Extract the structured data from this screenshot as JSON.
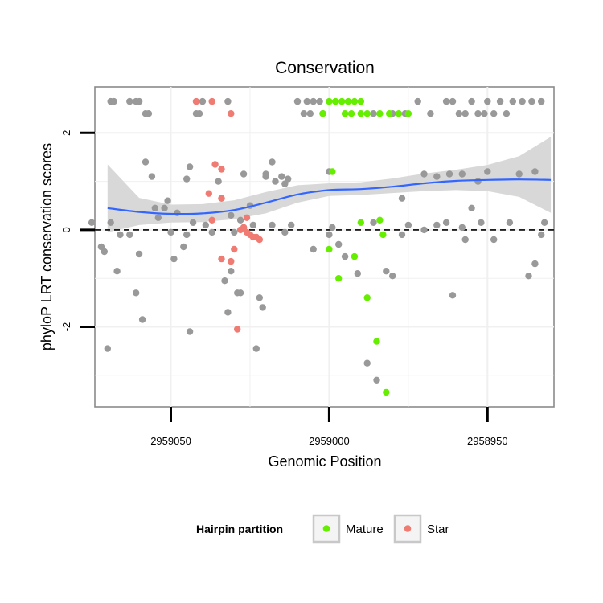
{
  "chart_data": {
    "type": "scatter",
    "title": "Conservation",
    "xlabel": "Genomic Position",
    "ylabel": "phyloP LRT conservation scores",
    "x_reversed": true,
    "xlim": [
      2959074,
      2958929
    ],
    "ylim": [
      -3.65,
      2.95
    ],
    "x_ticks": [
      2959050,
      2959000,
      2958950
    ],
    "x_tick_labels": [
      "2959050",
      "2959000",
      "2958950"
    ],
    "y_ticks": [
      2,
      0,
      -2
    ],
    "y_tick_labels": [
      "2",
      "0",
      "-2"
    ],
    "reference_line": {
      "y": 0,
      "style": "dashed"
    },
    "colors": {
      "other": "#999999",
      "Mature": "#66ee00",
      "Star": "#f07b72",
      "smooth": "#3366ff",
      "ribbon": "#d6d6d6",
      "panel_grid": "#f0f0f0"
    },
    "legend": {
      "title": "Hairpin partition",
      "position": "bottom",
      "entries": [
        {
          "label": "Mature",
          "color": "#66ee00"
        },
        {
          "label": "Star",
          "color": "#f07b72"
        }
      ]
    },
    "smooth": {
      "x": [
        2959070,
        2959060,
        2959050,
        2959040,
        2959030,
        2959020,
        2959010,
        2959000,
        2958990,
        2958980,
        2958970,
        2958960,
        2958950,
        2958940,
        2958930
      ],
      "y": [
        0.45,
        0.37,
        0.33,
        0.34,
        0.41,
        0.56,
        0.73,
        0.82,
        0.84,
        0.89,
        0.96,
        1.01,
        1.03,
        1.04,
        1.03
      ],
      "lower": [
        -0.05,
        0.1,
        0.15,
        0.16,
        0.22,
        0.34,
        0.56,
        0.7,
        0.72,
        0.76,
        0.8,
        0.82,
        0.8,
        0.68,
        0.35
      ],
      "upper": [
        1.35,
        0.66,
        0.52,
        0.53,
        0.61,
        0.78,
        0.92,
        0.96,
        0.98,
        1.06,
        1.16,
        1.24,
        1.34,
        1.52,
        1.92
      ]
    },
    "series": [
      {
        "name": "Other",
        "points": [
          [
            2959069,
            2.65
          ],
          [
            2959068,
            2.65
          ],
          [
            2959063,
            2.65
          ],
          [
            2959061,
            2.65
          ],
          [
            2959060,
            2.65
          ],
          [
            2959058,
            2.4
          ],
          [
            2959057,
            2.4
          ],
          [
            2959042,
            2.4
          ],
          [
            2959041,
            2.4
          ],
          [
            2959040,
            2.65
          ],
          [
            2959032,
            2.65
          ],
          [
            2959008,
            2.4
          ],
          [
            2959006,
            2.4
          ],
          [
            2959002,
            2.4
          ],
          [
            2959010,
            2.65
          ],
          [
            2959007,
            2.65
          ],
          [
            2959005,
            2.65
          ],
          [
            2959003,
            2.65
          ],
          [
            2958986,
            2.4
          ],
          [
            2958980,
            2.4
          ],
          [
            2958976,
            2.4
          ],
          [
            2958972,
            2.65
          ],
          [
            2958968,
            2.4
          ],
          [
            2958963,
            2.65
          ],
          [
            2958961,
            2.65
          ],
          [
            2958959,
            2.4
          ],
          [
            2958957,
            2.4
          ],
          [
            2958955,
            2.65
          ],
          [
            2958953,
            2.4
          ],
          [
            2958951,
            2.4
          ],
          [
            2958950,
            2.65
          ],
          [
            2958948,
            2.4
          ],
          [
            2958946,
            2.65
          ],
          [
            2958944,
            2.4
          ],
          [
            2958942,
            2.65
          ],
          [
            2958939,
            2.65
          ],
          [
            2958936,
            2.65
          ],
          [
            2958933,
            2.65
          ],
          [
            2958970,
            1.15
          ],
          [
            2958966,
            1.1
          ],
          [
            2958962,
            1.15
          ],
          [
            2958958,
            1.15
          ],
          [
            2958953,
            1.0
          ],
          [
            2958950,
            1.2
          ],
          [
            2958940,
            1.15
          ],
          [
            2958935,
            1.2
          ],
          [
            2958932,
            0.15
          ],
          [
            2958933,
            -0.1
          ],
          [
            2958935,
            -0.7
          ],
          [
            2958937,
            -0.95
          ],
          [
            2958943,
            0.15
          ],
          [
            2958948,
            -0.2
          ],
          [
            2958952,
            0.15
          ],
          [
            2958955,
            0.45
          ],
          [
            2958957,
            -0.2
          ],
          [
            2958958,
            0.05
          ],
          [
            2958961,
            -1.35
          ],
          [
            2958963,
            0.15
          ],
          [
            2958970,
            0.0
          ],
          [
            2958975,
            0.1
          ],
          [
            2958977,
            -0.1
          ],
          [
            2958977,
            0.65
          ],
          [
            2958982,
            -0.85
          ],
          [
            2958985,
            -3.1
          ],
          [
            2958988,
            -2.75
          ],
          [
            2958986,
            0.15
          ],
          [
            2959070,
            -2.45
          ],
          [
            2959072,
            -0.35
          ],
          [
            2959067,
            -0.85
          ],
          [
            2959071,
            -0.45
          ],
          [
            2959069,
            0.15
          ],
          [
            2959075,
            0.15
          ],
          [
            2959066,
            -0.1
          ],
          [
            2959063,
            -0.1
          ],
          [
            2959061,
            -1.3
          ],
          [
            2959060,
            -0.5
          ],
          [
            2959059,
            -1.85
          ],
          [
            2959058,
            1.4
          ],
          [
            2959056,
            1.1
          ],
          [
            2959055,
            0.45
          ],
          [
            2959054,
            0.25
          ],
          [
            2959052,
            0.45
          ],
          [
            2959051,
            0.6
          ],
          [
            2959050,
            -0.05
          ],
          [
            2959049,
            -0.6
          ],
          [
            2959048,
            0.35
          ],
          [
            2959046,
            -0.35
          ],
          [
            2959045,
            1.05
          ],
          [
            2959044,
            -2.1
          ],
          [
            2959044,
            1.3
          ],
          [
            2959043,
            0.15
          ],
          [
            2959039,
            0.1
          ],
          [
            2959037,
            -0.05
          ],
          [
            2959035,
            1.0
          ],
          [
            2959034,
            0.65
          ],
          [
            2959033,
            -1.05
          ],
          [
            2959032,
            -1.7
          ],
          [
            2959031,
            -0.85
          ],
          [
            2959030,
            -0.05
          ],
          [
            2959027,
            0.05
          ],
          [
            2959022,
            -1.4
          ],
          [
            2959021,
            -1.6
          ],
          [
            2959020,
            1.15
          ],
          [
            2959018,
            0.1
          ],
          [
            2959014,
            -0.05
          ],
          [
            2959013,
            1.05
          ],
          [
            2959012,
            0.1
          ],
          [
            2959018,
            1.4
          ],
          [
            2959015,
            1.1
          ],
          [
            2959014,
            0.95
          ],
          [
            2959017,
            1.0
          ],
          [
            2959000,
            1.2
          ],
          [
            2959025,
            0.5
          ],
          [
            2959023,
            -2.45
          ],
          [
            2959031,
            0.3
          ],
          [
            2959028,
            0.2
          ],
          [
            2959027,
            1.15
          ],
          [
            2959020,
            1.1
          ],
          [
            2959005,
            -0.4
          ],
          [
            2959000,
            -0.1
          ],
          [
            2958995,
            -0.55
          ],
          [
            2958991,
            -0.9
          ],
          [
            2958999,
            0.05
          ],
          [
            2958997,
            -0.3
          ],
          [
            2959029,
            -1.3
          ],
          [
            2959028,
            -1.3
          ],
          [
            2959024,
            0.1
          ],
          [
            2959045,
            -0.1
          ],
          [
            2958966,
            0.1
          ],
          [
            2958980,
            -0.95
          ]
        ]
      },
      {
        "name": "Mature",
        "points": [
          [
            2959000,
            2.65
          ],
          [
            2958998,
            2.65
          ],
          [
            2958996,
            2.65
          ],
          [
            2958994,
            2.65
          ],
          [
            2958992,
            2.65
          ],
          [
            2958990,
            2.65
          ],
          [
            2959002,
            2.4
          ],
          [
            2958995,
            2.4
          ],
          [
            2958993,
            2.4
          ],
          [
            2958990,
            2.4
          ],
          [
            2958988,
            2.4
          ],
          [
            2958984,
            2.4
          ],
          [
            2958981,
            2.4
          ],
          [
            2958978,
            2.4
          ],
          [
            2958975,
            2.4
          ],
          [
            2958999,
            1.2
          ],
          [
            2959000,
            -0.4
          ],
          [
            2958997,
            -1.0
          ],
          [
            2958992,
            -0.55
          ],
          [
            2958988,
            -1.4
          ],
          [
            2958985,
            -2.3
          ],
          [
            2958982,
            -3.35
          ],
          [
            2958990,
            0.15
          ],
          [
            2958984,
            0.2
          ],
          [
            2958983,
            -0.1
          ]
        ]
      },
      {
        "name": "Star",
        "points": [
          [
            2959042,
            2.65
          ],
          [
            2959037,
            2.65
          ],
          [
            2959031,
            2.4
          ],
          [
            2959036,
            1.35
          ],
          [
            2959034,
            1.25
          ],
          [
            2959038,
            0.75
          ],
          [
            2959034,
            0.65
          ],
          [
            2959037,
            0.2
          ],
          [
            2959034,
            -0.6
          ],
          [
            2959031,
            -0.65
          ],
          [
            2959030,
            -0.4
          ],
          [
            2959029,
            -2.05
          ],
          [
            2959028,
            0.0
          ],
          [
            2959027,
            0.05
          ],
          [
            2959026,
            -0.05
          ],
          [
            2959025,
            -0.1
          ],
          [
            2959024,
            -0.15
          ],
          [
            2959023,
            -0.15
          ],
          [
            2959022,
            -0.2
          ],
          [
            2959026,
            0.25
          ]
        ]
      }
    ]
  }
}
